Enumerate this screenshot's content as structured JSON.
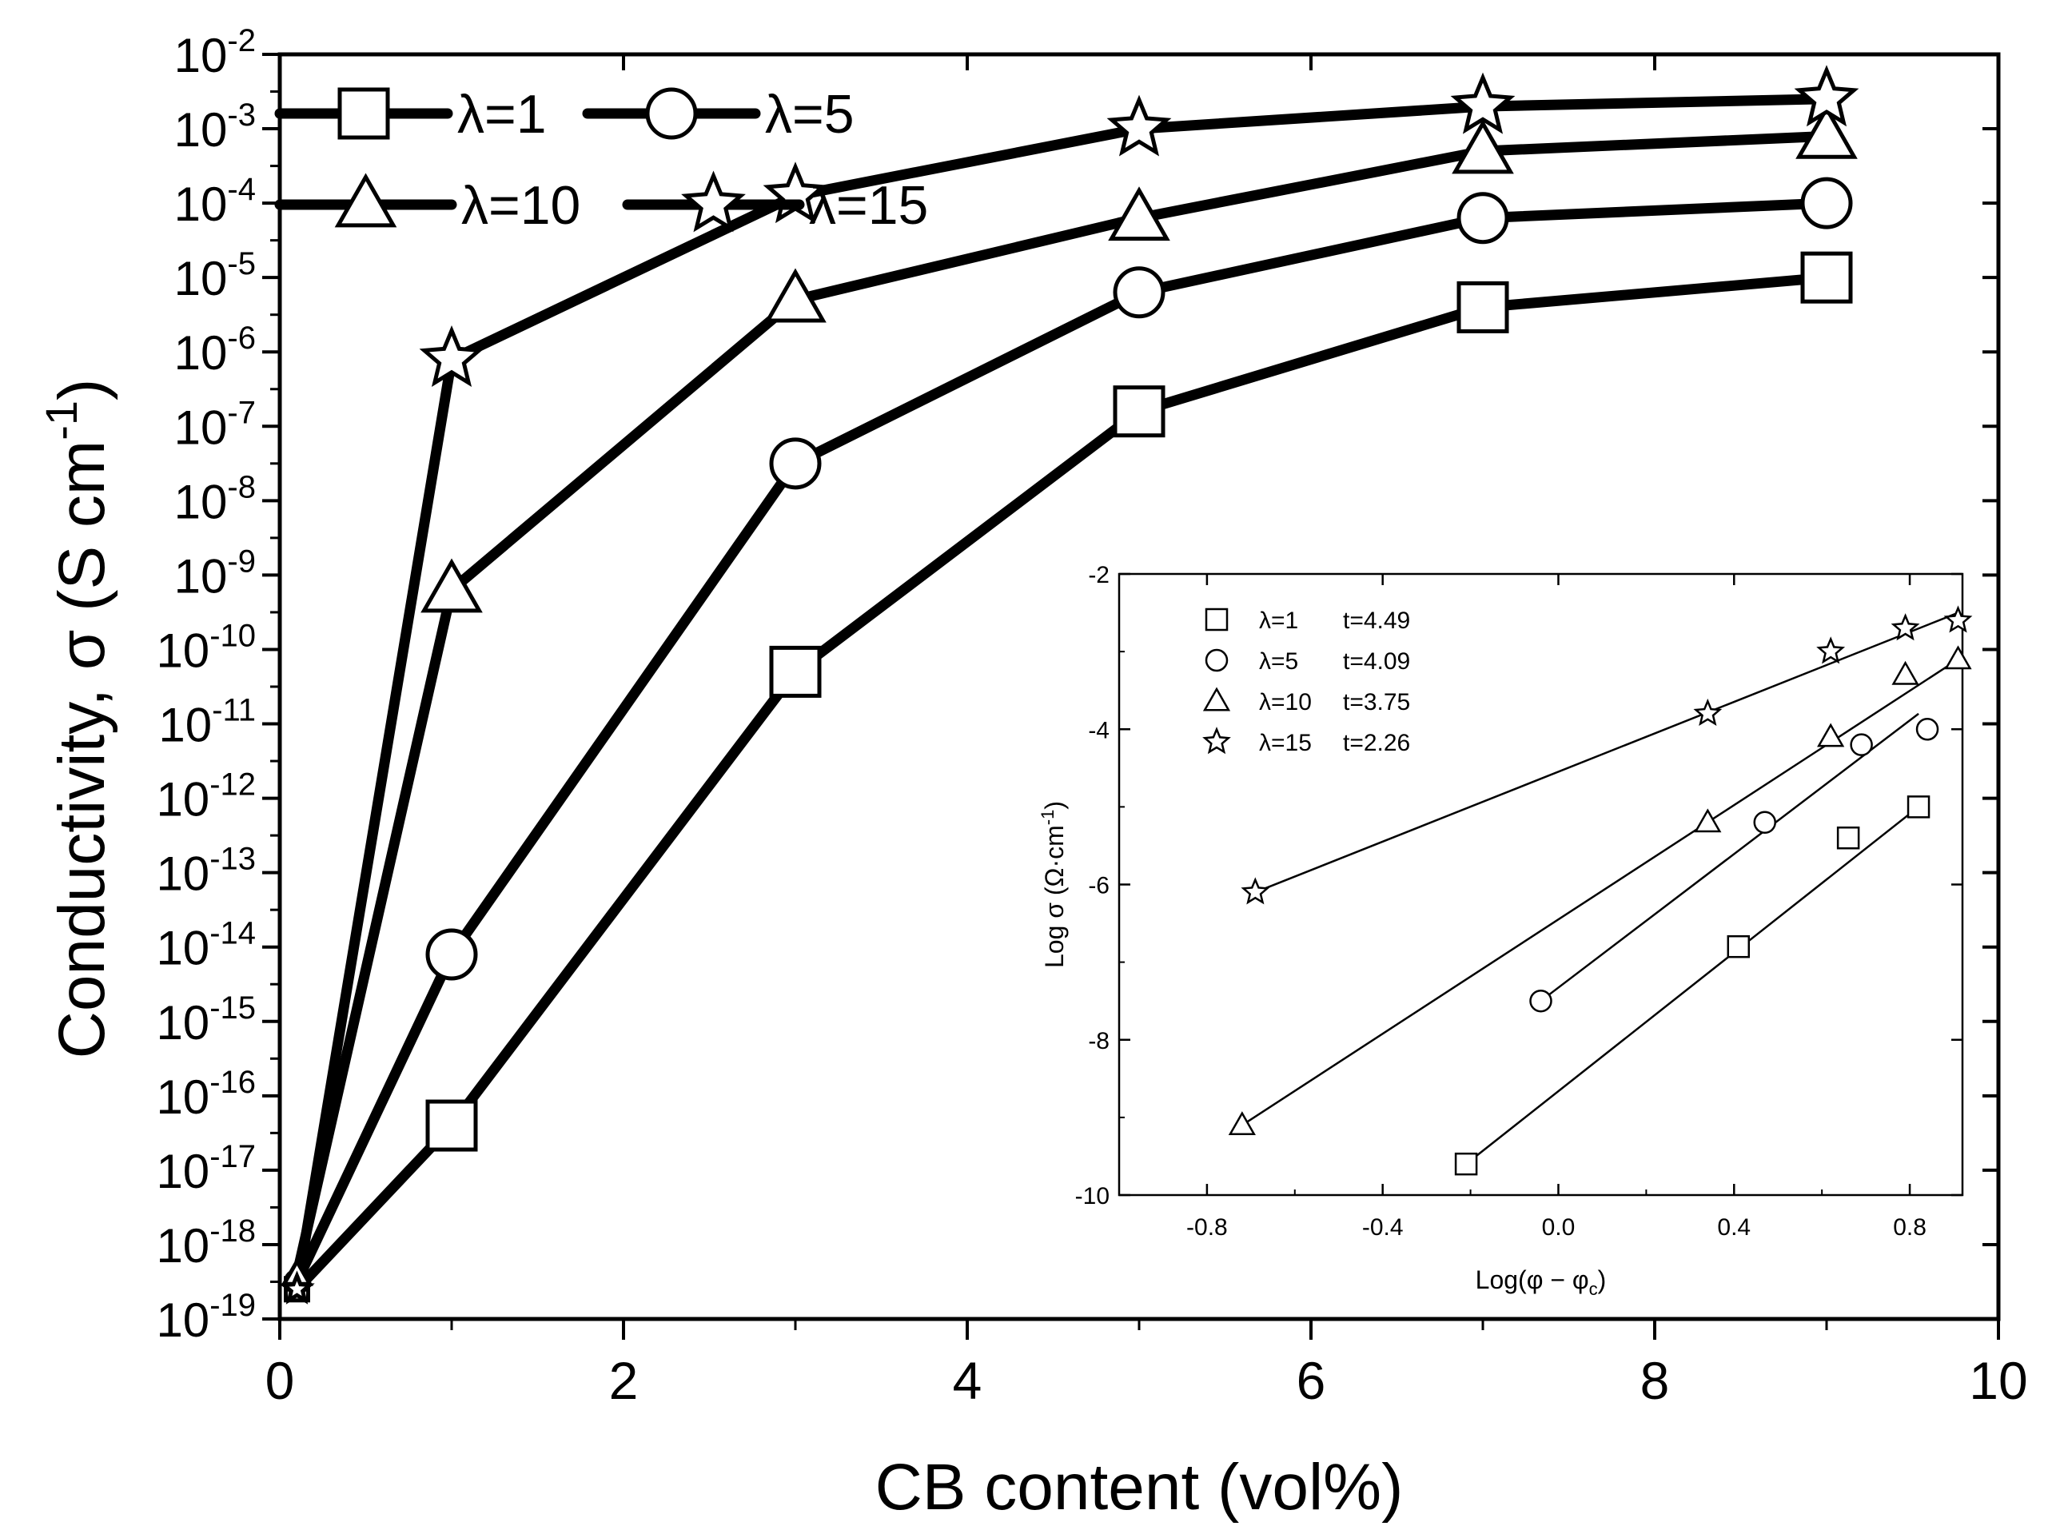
{
  "chart_data": [
    {
      "type": "line",
      "id": "main",
      "xlabel": "CB content (vol%)",
      "ylabel": "Conductivity, σ (S cm",
      "ylabel_sup": "-1",
      "ylabel_close": ")",
      "xlim": [
        0,
        10
      ],
      "ylim_log10": [
        -19,
        -2
      ],
      "x_ticks": [
        0,
        2,
        4,
        6,
        8,
        10
      ],
      "x_tick_labels": [
        "0",
        "2",
        "4",
        "6",
        "8",
        "10"
      ],
      "y_ticks_log10": [
        -19,
        -18,
        -17,
        -16,
        -15,
        -14,
        -13,
        -12,
        -11,
        -10,
        -9,
        -8,
        -7,
        -6,
        -5,
        -4,
        -3,
        -2
      ],
      "y_tick_base": "10",
      "y_tick_exponents": [
        "-19",
        "-18",
        "-17",
        "-16",
        "-15",
        "-14",
        "-13",
        "-12",
        "-11",
        "-10",
        "-9",
        "-8",
        "-7",
        "-6",
        "-5",
        "-4",
        "-3",
        "-2"
      ],
      "x": [
        0.1,
        1,
        3,
        5,
        7,
        9
      ],
      "series": [
        {
          "name": "λ=1",
          "marker": "square",
          "log10_values": [
            -18.6,
            -16.4,
            -10.3,
            -6.8,
            -5.4,
            -5.0
          ]
        },
        {
          "name": "λ=5",
          "marker": "circle",
          "log10_values": [
            -18.5,
            -14.1,
            -7.5,
            -5.2,
            -4.2,
            -4.0
          ]
        },
        {
          "name": "λ=10",
          "marker": "triangle",
          "log10_values": [
            -18.4,
            -9.2,
            -5.3,
            -4.2,
            -3.3,
            -3.1
          ]
        },
        {
          "name": "λ=15",
          "marker": "star",
          "log10_values": [
            -18.6,
            -6.1,
            -3.9,
            -3.0,
            -2.7,
            -2.6
          ]
        }
      ],
      "legend": {
        "placement": "top-left",
        "entries": [
          "λ=1",
          "λ=5",
          "λ=10",
          "λ=15"
        ]
      }
    },
    {
      "type": "scatter",
      "id": "inset",
      "xlabel": "Log(φ − φ",
      "xlabel_sub": "c",
      "xlabel_close": ")",
      "ylabel": "Log σ (Ω·cm",
      "ylabel_sup": "-1",
      "ylabel_close": ")",
      "xlim": [
        -1.0,
        0.92
      ],
      "ylim": [
        -10,
        -2
      ],
      "x_ticks": [
        -0.8,
        -0.4,
        0.0,
        0.4,
        0.8
      ],
      "x_tick_labels": [
        "-0.8",
        "-0.4",
        "0.0",
        "0.4",
        "0.8"
      ],
      "y_ticks": [
        -10,
        -8,
        -6,
        -4,
        -2
      ],
      "y_tick_labels": [
        "-10",
        "-8",
        "-6",
        "-4",
        "-2"
      ],
      "series": [
        {
          "name": "λ=1",
          "t_label": "t=4.49",
          "marker": "square",
          "points": [
            [
              -0.21,
              -9.6
            ],
            [
              0.41,
              -6.8
            ],
            [
              0.66,
              -5.4
            ],
            [
              0.82,
              -5.0
            ]
          ],
          "fit": [
            [
              -0.21,
              -9.6
            ],
            [
              0.82,
              -5.0
            ]
          ]
        },
        {
          "name": "λ=5",
          "t_label": "t=4.09",
          "marker": "circle",
          "points": [
            [
              -0.04,
              -7.5
            ],
            [
              0.47,
              -5.2
            ],
            [
              0.69,
              -4.2
            ],
            [
              0.84,
              -4.0
            ]
          ],
          "fit": [
            [
              -0.04,
              -7.5
            ],
            [
              0.82,
              -3.8
            ]
          ]
        },
        {
          "name": "λ=10",
          "t_label": "t=3.75",
          "marker": "triangle",
          "points": [
            [
              -0.72,
              -9.1
            ],
            [
              0.34,
              -5.2
            ],
            [
              0.62,
              -4.1
            ],
            [
              0.79,
              -3.3
            ],
            [
              0.91,
              -3.1
            ]
          ],
          "fit": [
            [
              -0.72,
              -9.1
            ],
            [
              0.91,
              -3.1
            ]
          ]
        },
        {
          "name": "λ=15",
          "t_label": "t=2.26",
          "marker": "star",
          "points": [
            [
              -0.69,
              -6.1
            ],
            [
              0.34,
              -3.8
            ],
            [
              0.62,
              -3.0
            ],
            [
              0.79,
              -2.7
            ],
            [
              0.91,
              -2.6
            ]
          ],
          "fit": [
            [
              -0.69,
              -6.1
            ],
            [
              0.91,
              -2.5
            ]
          ]
        }
      ],
      "legend": {
        "placement": "top-left",
        "entries": [
          "λ=1",
          "λ=5",
          "λ=10",
          "λ=15"
        ]
      }
    }
  ]
}
